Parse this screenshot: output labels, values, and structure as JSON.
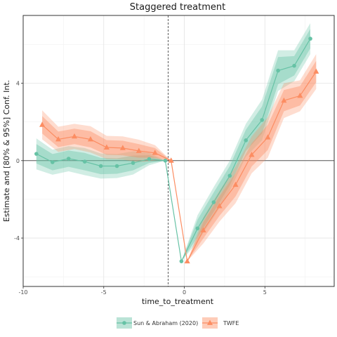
{
  "chart_data": {
    "type": "line",
    "title": "Staggered treatment",
    "xlabel": "time_to_treatment",
    "ylabel": "Estimate and [80% & 95%] Conf. Int.",
    "xlim": [
      -10,
      9.3
    ],
    "ylim": [
      -6.5,
      7.5
    ],
    "xticks": [
      -10,
      -5,
      0,
      5
    ],
    "yticks": [
      -4,
      0,
      4
    ],
    "x_tick_labels": [
      "-10",
      "-5",
      "0",
      "5"
    ],
    "y_tick_labels": [
      "-4",
      "0",
      "4"
    ],
    "reference_vline": -1,
    "reference_hline": 0,
    "grid": true,
    "legend_position": "bottom",
    "series": [
      {
        "name": "Sun & Abraham (2020)",
        "color": "#66c2a5",
        "marker": "circle",
        "x": [
          -9,
          -8,
          -7,
          -6,
          -5,
          -4,
          -3,
          -2,
          -1,
          0,
          1,
          2,
          3,
          4,
          5,
          6,
          7,
          8
        ],
        "y": [
          0.35,
          -0.08,
          0.1,
          -0.05,
          -0.28,
          -0.28,
          -0.12,
          0.08,
          0.0,
          -5.2,
          -3.5,
          -2.15,
          -0.78,
          1.05,
          2.1,
          4.65,
          4.9,
          6.3
        ],
        "ci80": [
          0.5,
          0.42,
          0.42,
          0.45,
          0.42,
          0.4,
          0.38,
          0.2,
          0.0,
          0.0,
          0.45,
          0.5,
          0.5,
          0.55,
          0.7,
          0.7,
          0.5,
          0.5
        ],
        "ci95": [
          0.8,
          0.65,
          0.65,
          0.7,
          0.65,
          0.62,
          0.6,
          0.32,
          0.0,
          0.0,
          0.68,
          0.78,
          0.78,
          0.85,
          1.05,
          1.05,
          0.8,
          0.8
        ]
      },
      {
        "name": "TWFE",
        "color": "#fc8d62",
        "marker": "triangle",
        "x": [
          -9,
          -8,
          -7,
          -6,
          -5,
          -4,
          -3,
          -2,
          -1,
          0,
          1,
          2,
          3,
          4,
          5,
          6,
          7,
          8
        ],
        "y": [
          1.85,
          1.1,
          1.25,
          1.1,
          0.68,
          0.65,
          0.5,
          0.4,
          0.0,
          -5.2,
          -3.6,
          -2.35,
          -1.25,
          0.3,
          1.2,
          3.1,
          3.35,
          4.6
        ],
        "ci80": [
          0.45,
          0.4,
          0.4,
          0.42,
          0.38,
          0.38,
          0.35,
          0.25,
          0.0,
          0.0,
          0.42,
          0.5,
          0.6,
          0.6,
          0.65,
          0.55,
          0.5,
          0.55
        ],
        "ci95": [
          0.75,
          0.65,
          0.65,
          0.68,
          0.6,
          0.6,
          0.58,
          0.4,
          0.0,
          0.0,
          0.68,
          0.8,
          0.95,
          0.95,
          1.05,
          0.9,
          0.8,
          0.9
        ]
      }
    ]
  }
}
